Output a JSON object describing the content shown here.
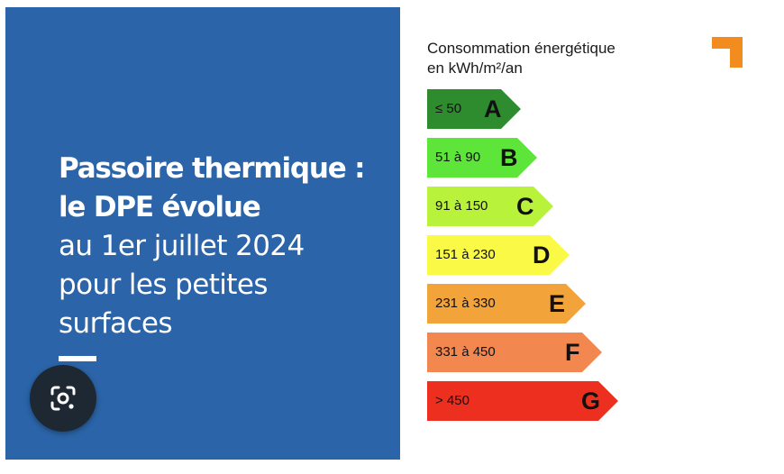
{
  "headline": {
    "line1": "Passoire thermique :",
    "line2": "le DPE évolue",
    "line3": "au 1er juillet 2024",
    "line4": "pour les petites",
    "line5": "surfaces"
  },
  "legend": {
    "title_line1": "Consommation énergétique",
    "title_line2": "en kWh/m²/an"
  },
  "classes": [
    {
      "letter": "A",
      "range": "≤ 50",
      "color": "#2e8b2e"
    },
    {
      "letter": "B",
      "range": "51 à 90",
      "color": "#5ee53a"
    },
    {
      "letter": "C",
      "range": "91 à 150",
      "color": "#b8f23a"
    },
    {
      "letter": "D",
      "range": "151 à 230",
      "color": "#fafa46"
    },
    {
      "letter": "E",
      "range": "231 à 330",
      "color": "#f2a33a"
    },
    {
      "letter": "F",
      "range": "331 à 450",
      "color": "#f2884f"
    },
    {
      "letter": "G",
      "range": "> 450",
      "color": "#ed2f20"
    }
  ],
  "colors": {
    "panel_blue": "#2b64a8",
    "brand_orange": "#f28c1e"
  },
  "icons": {
    "lens": "google-lens-icon",
    "brand": "brand-logo-icon"
  }
}
